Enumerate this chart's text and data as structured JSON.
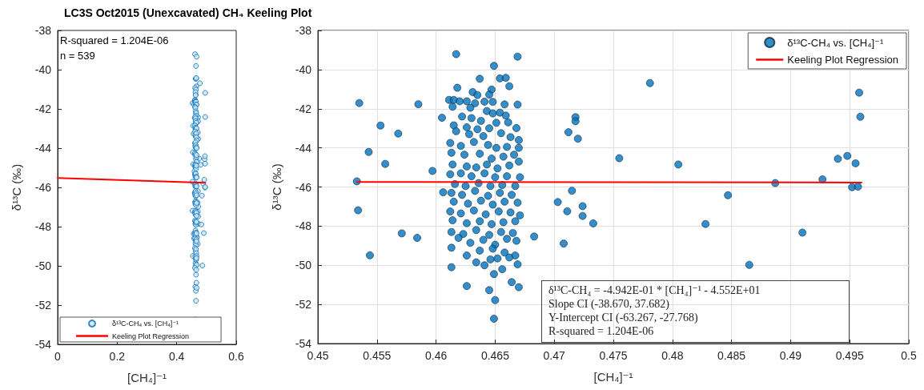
{
  "chart_data": [
    {
      "type": "scatter",
      "title": "LC3S Oct2015 (Unexcavated) CH₄ Keeling Plot",
      "xlabel": "[CH₄]⁻¹",
      "ylabel": "δ¹³C (‰)",
      "xlim": [
        0,
        0.6
      ],
      "xticks": [
        0,
        0.2,
        0.4,
        0.6
      ],
      "ylim": [
        -54,
        -38
      ],
      "yticks": [
        -54,
        -52,
        -50,
        -48,
        -46,
        -44,
        -42,
        -40,
        -38
      ],
      "grid": false,
      "legend": "bottom left",
      "marker": "circle",
      "annotations": [
        "R-squared = 1.204E-06",
        "n = 539"
      ],
      "series": [
        {
          "name": "δ¹³C-CH₄ vs. [CH₄]⁻¹",
          "color": "#0072bd",
          "x": [
            0.4535,
            0.4553,
            0.4568,
            0.4543,
            0.4557,
            0.4533,
            0.4534,
            0.4571,
            0.4544,
            0.4585,
            0.4584,
            0.4597,
            0.4605,
            0.4606,
            0.4683,
            0.4703,
            0.4708,
            0.4711,
            0.4712,
            0.4715,
            0.4718,
            0.4718,
            0.472,
            0.4724,
            0.4724,
            0.4733,
            0.4755,
            0.4781,
            0.4805,
            0.4828,
            0.4847,
            0.4865,
            0.4887,
            0.491,
            0.4927,
            0.494,
            0.4948,
            0.4955,
            0.4952,
            0.4957,
            0.4958,
            0.4959,
            0.4617,
            0.4669,
            0.4649,
            0.4637,
            0.4654,
            0.4659,
            0.4662,
            0.4618,
            0.4647,
            0.4645,
            0.4631,
            0.4635,
            0.4611,
            0.4615,
            0.462,
            0.4626,
            0.4633,
            0.4641,
            0.4648,
            0.4658,
            0.4669,
            0.4614,
            0.4629,
            0.4643,
            0.4648,
            0.4654,
            0.4659,
            0.4622,
            0.463,
            0.4638,
            0.4651,
            0.4661,
            0.4615,
            0.4626,
            0.4635,
            0.4645,
            0.4668,
            0.4617,
            0.4628,
            0.464,
            0.4655,
            0.4663,
            0.467,
            0.4612,
            0.4621,
            0.4632,
            0.4644,
            0.4651,
            0.466,
            0.467,
            0.4613,
            0.4624,
            0.4637,
            0.4647,
            0.4657,
            0.4666,
            0.467,
            0.4614,
            0.4626,
            0.4634,
            0.4643,
            0.4652,
            0.4662,
            0.4612,
            0.4621,
            0.463,
            0.4641,
            0.465,
            0.466,
            0.4671,
            0.4616,
            0.4625,
            0.4636,
            0.4646,
            0.4656,
            0.4667,
            0.4613,
            0.4622,
            0.4633,
            0.4644,
            0.4654,
            0.4664,
            0.4615,
            0.4627,
            0.4638,
            0.4648,
            0.4658,
            0.4669,
            0.4612,
            0.4621,
            0.4632,
            0.4642,
            0.4653,
            0.4663,
            0.4671,
            0.4614,
            0.4626,
            0.4637,
            0.4647,
            0.4657,
            0.4667,
            0.4613,
            0.4623,
            0.4634,
            0.4645,
            0.4655,
            0.4665,
            0.4619,
            0.4629,
            0.464,
            0.465,
            0.466,
            0.4668,
            0.4613,
            0.4626,
            0.4637,
            0.4648,
            0.4658,
            0.4667,
            0.4634,
            0.4641,
            0.4646,
            0.4652,
            0.4662,
            0.4669,
            0.4613,
            0.4649,
            0.4656,
            0.4626,
            0.4645,
            0.4664,
            0.467,
            0.465,
            0.4649
          ],
          "values": [
            -41.71,
            -42.86,
            -43.27,
            -44.21,
            -44.82,
            -45.71,
            -47.19,
            -48.37,
            -49.49,
            -41.77,
            -48.6,
            -45.18,
            -42.46,
            -46.27,
            -48.53,
            -46.77,
            -48.89,
            -47.24,
            -43.2,
            -46.19,
            -42.43,
            -42.64,
            -43.53,
            -46.98,
            -47.48,
            -47.86,
            -44.53,
            -40.69,
            -44.85,
            -47.89,
            -46.42,
            -49.98,
            -45.8,
            -48.33,
            -45.61,
            -44.56,
            -44.41,
            -44.79,
            -46.01,
            -45.98,
            -41.18,
            -42.41,
            -39.21,
            -39.34,
            -39.81,
            -40.47,
            -40.45,
            -40.42,
            -40.85,
            -40.93,
            -41.02,
            -41.28,
            -41.15,
            -41.3,
            -41.55,
            -41.55,
            -41.62,
            -41.62,
            -41.72,
            -41.64,
            -41.65,
            -41.78,
            -41.79,
            -41.9,
            -41.95,
            -42.12,
            -42.24,
            -42.2,
            -42.35,
            -42.4,
            -42.48,
            -42.62,
            -42.72,
            -42.7,
            -42.85,
            -42.95,
            -43.05,
            -43.0,
            -42.99,
            -43.15,
            -43.3,
            -43.4,
            -43.25,
            -43.45,
            -43.6,
            -43.75,
            -43.9,
            -43.7,
            -43.85,
            -44.0,
            -43.95,
            -44.0,
            -44.25,
            -44.35,
            -44.3,
            -44.55,
            -44.45,
            -44.35,
            -44.7,
            -44.85,
            -44.95,
            -45.0,
            -44.85,
            -45.05,
            -44.9,
            -45.35,
            -45.3,
            -45.45,
            -45.3,
            -45.5,
            -45.45,
            -45.5,
            -45.85,
            -45.95,
            -45.8,
            -45.95,
            -45.9,
            -45.95,
            -46.3,
            -46.4,
            -46.2,
            -46.45,
            -46.3,
            -46.4,
            -46.75,
            -46.85,
            -46.7,
            -46.9,
            -46.75,
            -46.8,
            -47.25,
            -47.35,
            -47.2,
            -47.4,
            -47.25,
            -47.3,
            -47.45,
            -47.7,
            -47.85,
            -47.75,
            -47.9,
            -47.8,
            -47.75,
            -48.3,
            -48.4,
            -48.2,
            -48.45,
            -48.3,
            -48.35,
            -48.6,
            -48.85,
            -48.7,
            -48.95,
            -48.65,
            -48.75,
            -49.1,
            -49.5,
            -49.25,
            -49.15,
            -49.35,
            -49.5,
            -49.85,
            -50.0,
            -49.7,
            -49.65,
            -49.6,
            -49.95,
            -50.1,
            -50.45,
            -50.2,
            -51.06,
            -51.27,
            -50.86,
            -51.12,
            -51.78,
            -52.73
          ]
        },
        {
          "name": "Keeling Plot Regression",
          "type": "line",
          "color": "#ff0000",
          "marker": "none",
          "x": [
            0,
            0.496
          ],
          "values": [
            -45.52,
            -45.77
          ]
        }
      ]
    },
    {
      "type": "scatter",
      "xlabel": "[CH₄]⁻¹",
      "ylabel": "δ¹³C (‰)",
      "xlim": [
        0.45,
        0.5
      ],
      "xticks": [
        0.45,
        0.455,
        0.46,
        0.465,
        0.47,
        0.475,
        0.48,
        0.485,
        0.49,
        0.495,
        0.5
      ],
      "ylim": [
        -54,
        -38
      ],
      "yticks": [
        -54,
        -52,
        -50,
        -48,
        -46,
        -44,
        -42,
        -40,
        -38
      ],
      "grid": true,
      "legend": "top right",
      "marker": "circle",
      "annotations": [
        "δ¹³C-CH₄ = -4.942E-01 * [CH₄]⁻¹ - 4.552E+01",
        "Slope CI (-38.670, 37.682)",
        "Y-Intercept CI (-63.267, -27.768)",
        "R-squared = 1.204E-06"
      ],
      "series": [
        {
          "name": "δ¹³C-CH₄ vs. [CH₄]⁻¹",
          "color": "#0072bd",
          "x": [
            0.4535,
            0.4553,
            0.4568,
            0.4543,
            0.4557,
            0.4533,
            0.4534,
            0.4571,
            0.4544,
            0.4585,
            0.4584,
            0.4597,
            0.4605,
            0.4606,
            0.4683,
            0.4703,
            0.4708,
            0.4711,
            0.4712,
            0.4715,
            0.4718,
            0.4718,
            0.472,
            0.4724,
            0.4724,
            0.4733,
            0.4755,
            0.4781,
            0.4805,
            0.4828,
            0.4847,
            0.4865,
            0.4887,
            0.491,
            0.4927,
            0.494,
            0.4948,
            0.4955,
            0.4952,
            0.4957,
            0.4958,
            0.4959,
            0.4617,
            0.4669,
            0.4649,
            0.4637,
            0.4654,
            0.4659,
            0.4662,
            0.4618,
            0.4647,
            0.4645,
            0.4631,
            0.4635,
            0.4611,
            0.4615,
            0.462,
            0.4626,
            0.4633,
            0.4641,
            0.4648,
            0.4658,
            0.4669,
            0.4614,
            0.4629,
            0.4643,
            0.4648,
            0.4654,
            0.4659,
            0.4622,
            0.463,
            0.4638,
            0.4651,
            0.4661,
            0.4615,
            0.4626,
            0.4635,
            0.4645,
            0.4668,
            0.4617,
            0.4628,
            0.464,
            0.4655,
            0.4663,
            0.467,
            0.4612,
            0.4621,
            0.4632,
            0.4644,
            0.4651,
            0.466,
            0.467,
            0.4613,
            0.4624,
            0.4637,
            0.4647,
            0.4657,
            0.4666,
            0.467,
            0.4614,
            0.4626,
            0.4634,
            0.4643,
            0.4652,
            0.4662,
            0.4612,
            0.4621,
            0.463,
            0.4641,
            0.465,
            0.466,
            0.4671,
            0.4616,
            0.4625,
            0.4636,
            0.4646,
            0.4656,
            0.4667,
            0.4613,
            0.4622,
            0.4633,
            0.4644,
            0.4654,
            0.4664,
            0.4615,
            0.4627,
            0.4638,
            0.4648,
            0.4658,
            0.4669,
            0.4612,
            0.4621,
            0.4632,
            0.4642,
            0.4653,
            0.4663,
            0.4671,
            0.4614,
            0.4626,
            0.4637,
            0.4647,
            0.4657,
            0.4667,
            0.4613,
            0.4623,
            0.4634,
            0.4645,
            0.4655,
            0.4665,
            0.4619,
            0.4629,
            0.464,
            0.465,
            0.466,
            0.4668,
            0.4613,
            0.4626,
            0.4637,
            0.4648,
            0.4658,
            0.4667,
            0.4634,
            0.4641,
            0.4646,
            0.4652,
            0.4662,
            0.4669,
            0.4613,
            0.4649,
            0.4656,
            0.4626,
            0.4645,
            0.4664,
            0.467,
            0.465,
            0.4649
          ],
          "values": [
            -41.71,
            -42.86,
            -43.27,
            -44.21,
            -44.82,
            -45.71,
            -47.19,
            -48.37,
            -49.49,
            -41.77,
            -48.6,
            -45.18,
            -42.46,
            -46.27,
            -48.53,
            -46.77,
            -48.89,
            -47.24,
            -43.2,
            -46.19,
            -42.43,
            -42.64,
            -43.53,
            -46.98,
            -47.48,
            -47.86,
            -44.53,
            -40.69,
            -44.85,
            -47.89,
            -46.42,
            -49.98,
            -45.8,
            -48.33,
            -45.61,
            -44.56,
            -44.41,
            -44.79,
            -46.01,
            -45.98,
            -41.18,
            -42.41,
            -39.21,
            -39.34,
            -39.81,
            -40.47,
            -40.45,
            -40.42,
            -40.85,
            -40.93,
            -41.02,
            -41.28,
            -41.15,
            -41.3,
            -41.55,
            -41.55,
            -41.62,
            -41.62,
            -41.72,
            -41.64,
            -41.65,
            -41.78,
            -41.79,
            -41.9,
            -41.95,
            -42.12,
            -42.24,
            -42.2,
            -42.35,
            -42.4,
            -42.48,
            -42.62,
            -42.72,
            -42.7,
            -42.85,
            -42.95,
            -43.05,
            -43.0,
            -42.99,
            -43.15,
            -43.3,
            -43.4,
            -43.25,
            -43.45,
            -43.6,
            -43.75,
            -43.9,
            -43.7,
            -43.85,
            -44.0,
            -43.95,
            -44.0,
            -44.25,
            -44.35,
            -44.3,
            -44.55,
            -44.45,
            -44.35,
            -44.7,
            -44.85,
            -44.95,
            -45.0,
            -44.85,
            -45.05,
            -44.9,
            -45.35,
            -45.3,
            -45.45,
            -45.3,
            -45.5,
            -45.45,
            -45.5,
            -45.85,
            -45.95,
            -45.8,
            -45.95,
            -45.9,
            -45.95,
            -46.3,
            -46.4,
            -46.2,
            -46.45,
            -46.3,
            -46.4,
            -46.75,
            -46.85,
            -46.7,
            -46.9,
            -46.75,
            -46.8,
            -47.25,
            -47.35,
            -47.2,
            -47.4,
            -47.25,
            -47.3,
            -47.45,
            -47.7,
            -47.85,
            -47.75,
            -47.9,
            -47.8,
            -47.75,
            -48.3,
            -48.4,
            -48.2,
            -48.45,
            -48.3,
            -48.35,
            -48.6,
            -48.85,
            -48.7,
            -48.95,
            -48.65,
            -48.75,
            -49.1,
            -49.5,
            -49.25,
            -49.15,
            -49.35,
            -49.5,
            -49.85,
            -50.0,
            -49.7,
            -49.65,
            -49.6,
            -49.95,
            -50.1,
            -50.45,
            -50.2,
            -51.06,
            -51.27,
            -50.86,
            -51.12,
            -51.78,
            -52.73
          ]
        },
        {
          "name": "Keeling Plot Regression",
          "type": "line",
          "color": "#ff0000",
          "marker": "none",
          "x": [
            0.4533,
            0.496
          ],
          "values": [
            -45.74,
            -45.77
          ]
        }
      ]
    }
  ]
}
